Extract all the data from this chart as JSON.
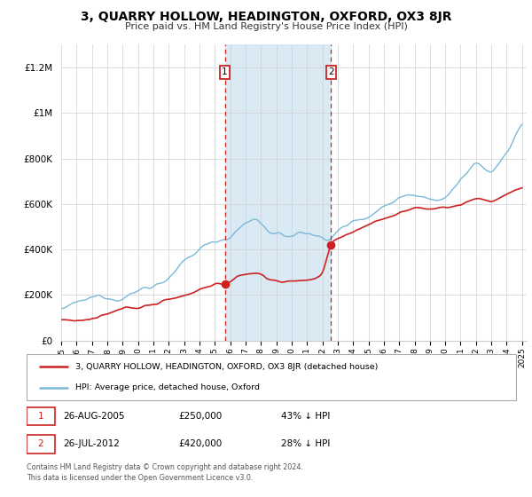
{
  "title": "3, QUARRY HOLLOW, HEADINGTON, OXFORD, OX3 8JR",
  "subtitle": "Price paid vs. HM Land Registry's House Price Index (HPI)",
  "hpi_color": "#7ab8d9",
  "price_color": "#cc2222",
  "shaded_color": "#daeaf5",
  "purchase1_date": 2005.65,
  "purchase1_price": 250000,
  "purchase2_date": 2012.57,
  "purchase2_price": 420000,
  "legend_text1": "3, QUARRY HOLLOW, HEADINGTON, OXFORD, OX3 8JR (detached house)",
  "legend_text2": "HPI: Average price, detached house, Oxford",
  "table_row1": [
    "1",
    "26-AUG-2005",
    "£250,000",
    "43% ↓ HPI"
  ],
  "table_row2": [
    "2",
    "26-JUL-2012",
    "£420,000",
    "28% ↓ HPI"
  ],
  "footnote": "Contains HM Land Registry data © Crown copyright and database right 2024.\nThis data is licensed under the Open Government Licence v3.0.",
  "ylim": [
    0,
    1300000
  ],
  "xlim_start": 1995.0,
  "xlim_end": 2025.3,
  "yticks": [
    0,
    200000,
    400000,
    600000,
    800000,
    1000000,
    1200000
  ],
  "ytick_labels": [
    "£0",
    "£200K",
    "£400K",
    "£600K",
    "£800K",
    "£1M",
    "£1.2M"
  ]
}
